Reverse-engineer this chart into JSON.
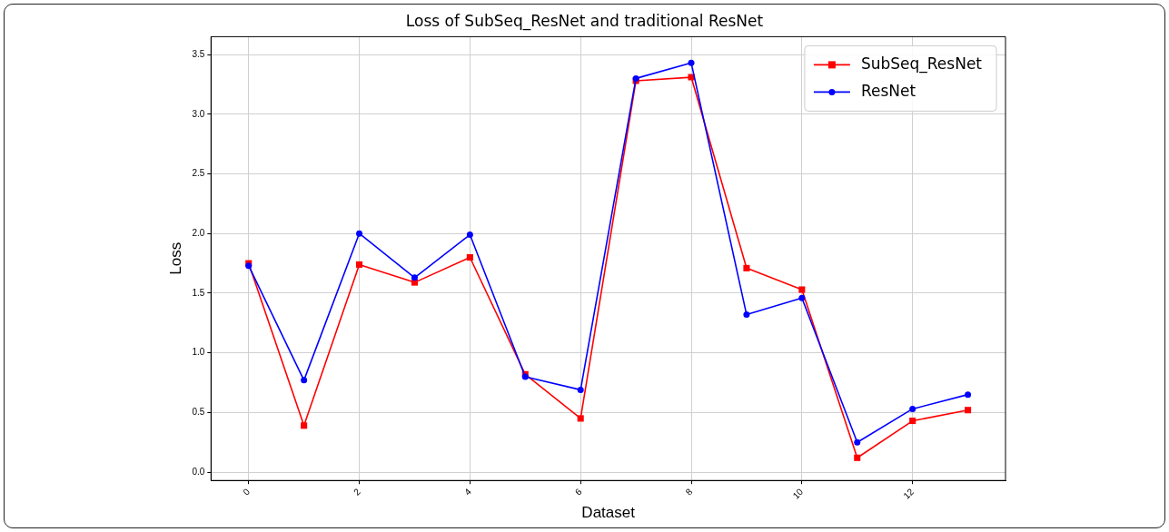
{
  "chart_data": {
    "type": "line",
    "title": "Loss of SubSeq_ResNet and traditional ResNet",
    "xlabel": "Dataset",
    "ylabel": "Loss",
    "x": [
      0,
      1,
      2,
      3,
      4,
      5,
      6,
      7,
      8,
      9,
      10,
      11,
      12,
      13
    ],
    "series": [
      {
        "name": "SubSeq_ResNet",
        "color": "#ff0000",
        "marker": "square",
        "values": [
          1.75,
          0.39,
          1.74,
          1.59,
          1.8,
          0.82,
          0.45,
          3.28,
          3.31,
          1.71,
          1.53,
          0.12,
          0.43,
          0.52
        ]
      },
      {
        "name": "ResNet",
        "color": "#0000ff",
        "marker": "circle",
        "values": [
          1.73,
          0.77,
          2.0,
          1.63,
          1.99,
          0.8,
          0.69,
          3.3,
          3.43,
          1.32,
          1.46,
          0.25,
          0.53,
          0.65
        ]
      }
    ],
    "xlim": [
      -0.68,
      13.68
    ],
    "xticks": [
      0,
      2,
      4,
      6,
      8,
      10,
      12
    ],
    "ylim": [
      -0.07,
      3.65
    ],
    "yticks": [
      {
        "value": 0,
        "label": "0.0"
      },
      {
        "value": 0.5,
        "label": "0.5"
      },
      {
        "value": 1,
        "label": "1.0"
      },
      {
        "value": 1.5,
        "label": "1.5"
      },
      {
        "value": 2,
        "label": "2.0"
      },
      {
        "value": 2.5,
        "label": "2.5"
      },
      {
        "value": 3,
        "label": "3.0"
      },
      {
        "value": 3.5,
        "label": "3.5"
      }
    ],
    "grid": true,
    "legend": "top right",
    "line_style": "solid"
  }
}
